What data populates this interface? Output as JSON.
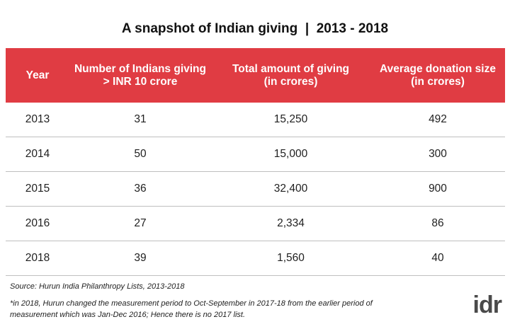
{
  "title": "A snapshot of Indian giving  |  2013 - 2018",
  "table": {
    "headers": [
      {
        "line1": "Year",
        "line2": ""
      },
      {
        "line1": "Number of Indians giving",
        "line2": "> INR 10 crore"
      },
      {
        "line1": "Total amount of giving",
        "line2": "(in crores)"
      },
      {
        "line1": "Average donation size",
        "line2": "(in crores)"
      }
    ],
    "rows": [
      [
        "2013",
        "31",
        "15,250",
        "492"
      ],
      [
        "2014",
        "50",
        "15,000",
        "300"
      ],
      [
        "2015",
        "36",
        "32,400",
        "900"
      ],
      [
        "2016",
        "27",
        "2,334",
        "86"
      ],
      [
        "2018",
        "39",
        "1,560",
        "40"
      ]
    ]
  },
  "source": "Source: Hurun India Philanthropy Lists, 2013-2018",
  "note": "*in 2018, Hurun changed the measurement period to Oct-September in 2017-18 from the earlier period of measurement which was Jan-Dec 2016; Hence there is no 2017 list.",
  "logo": "idr",
  "colors": {
    "header_bg": "#e03c43",
    "header_text": "#ffffff",
    "row_divider": "#bfbfbf"
  }
}
